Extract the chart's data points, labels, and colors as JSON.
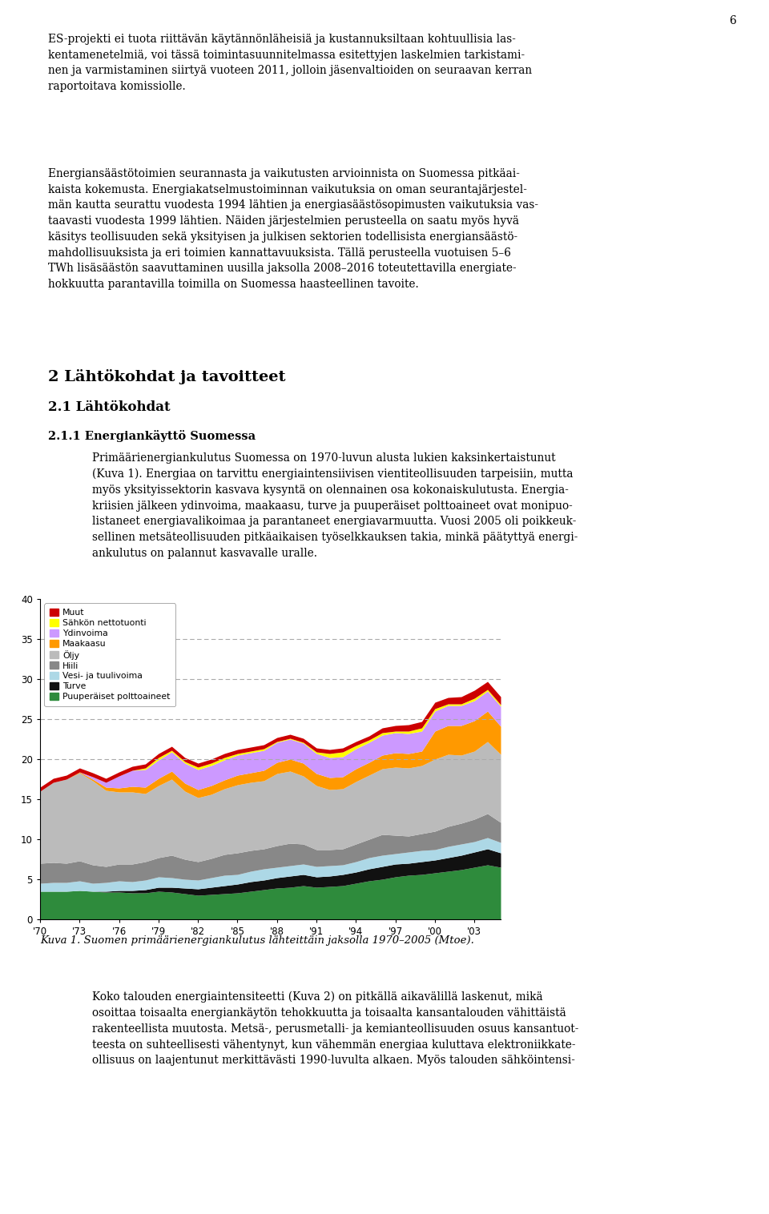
{
  "page_number": "6",
  "p1_lines": [
    "ES-projekti ei tuota riittävän käytännönläheisiä ja kustannuksiltaan kohtuullisia las-",
    "kentamenetelmiä, voi tässä toimintasuunnitelmassa esitettyjen laskelmien tarkistami-",
    "nen ja varmistaminen siirtyä vuoteen 2011, jolloin jäsenvaltioiden on seuraavan kerran",
    "raportoitava komissiolle."
  ],
  "p2_lines": [
    "Energiansäästötoimien seurannasta ja vaikutusten arvioinnista on Suomessa pitkäai-",
    "kaista kokemusta. Energiakatselmustoiminnan vaikutuksia on oman seurantajärjestel-",
    "män kautta seurattu vuodesta 1994 lähtien ja energiasäästösopimusten vaikutuksia vas-",
    "taavasti vuodesta 1999 lähtien. Näiden järjestelmien perusteella on saatu myös hyvä",
    "käsitys teollisuuden sekä yksityisen ja julkisen sektorien todellisista energiansäästö-",
    "mahdollisuuksista ja eri toimien kannattavuuksista. Tällä perusteella vuotuisen 5–6",
    "TWh lisäsäästön saavuttaminen uusilla jaksolla 2008–2016 toteutettavilla energiate-",
    "hokkuutta parantavilla toimilla on Suomessa haasteellinen tavoite."
  ],
  "heading1": "2 Lähtökohdat ja tavoitteet",
  "heading2": "2.1 Lähtökohdat",
  "heading3": "2.1.1 Energiankäyttö Suomessa",
  "p3_lines": [
    "Primäärienergiankulutus Suomessa on 1970-luvun alusta lukien kaksinkertaistunut",
    "(Kuva 1). Energiaa on tarvittu energiaintensiivisen vientiteollisuuden tarpeisiin, mutta",
    "myös yksityissektorin kasvava kysyntä on olennainen osa kokonaiskulutusta. Energia-",
    "kriisien jälkeen ydinvoima, maakaasu, turve ja puuperäiset polttoaineet ovat monipuo-",
    "listaneet energiavalikoimaa ja parantaneet energiavarmuutta. Vuosi 2005 oli poikkeuk-",
    "sellinen metsäteollisuuden pitkäaikaisen työselkkauksen takia, minkä päätyttyä energi-",
    "ankulutus on palannut kasvavalle uralle."
  ],
  "caption": "Kuva 1. Suomen primäärienergiankulutus lähteittäin jaksolla 1970–2005 (Mtoe).",
  "p4_lines": [
    "Koko talouden energiaintensiteetti (Kuva 2) on pitkällä aikavälillä laskenut, mikä",
    "osoittaa toisaalta energiankäytön tehokkuutta ja toisaalta kansantalouden vähittäistä",
    "rakenteellista muutosta. Metsä-, perusmetalli- ja kemianteollisuuden osuus kansantuot-",
    "teesta on suhteellisesti vähentynyt, kun vähemmän energiaa kuluttava elektroniikkate-",
    "ollisuus on laajentunut merkittävästi 1990-luvulta alkaen. Myös talouden sähköintensi-"
  ],
  "chart": {
    "years_numeric": [
      1970,
      1971,
      1972,
      1973,
      1974,
      1975,
      1976,
      1977,
      1978,
      1979,
      1980,
      1981,
      1982,
      1983,
      1984,
      1985,
      1986,
      1987,
      1988,
      1989,
      1990,
      1991,
      1992,
      1993,
      1994,
      1995,
      1996,
      1997,
      1998,
      1999,
      2000,
      2001,
      2002,
      2003,
      2004,
      2005
    ],
    "Puuperäiset polttoaineet": [
      3.5,
      3.5,
      3.5,
      3.6,
      3.5,
      3.4,
      3.4,
      3.3,
      3.3,
      3.5,
      3.4,
      3.2,
      3.0,
      3.1,
      3.2,
      3.3,
      3.5,
      3.7,
      3.9,
      4.0,
      4.2,
      4.0,
      4.1,
      4.2,
      4.5,
      4.8,
      5.0,
      5.3,
      5.5,
      5.6,
      5.8,
      6.0,
      6.2,
      6.5,
      6.8,
      6.5
    ],
    "Turve": [
      0.0,
      0.0,
      0.0,
      0.0,
      0.0,
      0.1,
      0.2,
      0.3,
      0.4,
      0.5,
      0.6,
      0.7,
      0.8,
      0.9,
      1.0,
      1.1,
      1.2,
      1.2,
      1.3,
      1.4,
      1.4,
      1.3,
      1.3,
      1.4,
      1.4,
      1.5,
      1.6,
      1.6,
      1.5,
      1.6,
      1.6,
      1.7,
      1.8,
      1.9,
      2.0,
      1.8
    ],
    "Vesi- ja tuulivoima": [
      1.0,
      1.1,
      1.1,
      1.2,
      1.0,
      1.1,
      1.2,
      1.1,
      1.2,
      1.3,
      1.2,
      1.1,
      1.1,
      1.2,
      1.3,
      1.2,
      1.3,
      1.4,
      1.3,
      1.3,
      1.3,
      1.3,
      1.3,
      1.2,
      1.3,
      1.4,
      1.4,
      1.3,
      1.4,
      1.4,
      1.3,
      1.4,
      1.4,
      1.3,
      1.4,
      1.3
    ],
    "Hiili": [
      2.5,
      2.5,
      2.4,
      2.5,
      2.3,
      2.0,
      2.1,
      2.2,
      2.3,
      2.4,
      2.8,
      2.5,
      2.3,
      2.4,
      2.6,
      2.7,
      2.6,
      2.5,
      2.7,
      2.8,
      2.5,
      2.1,
      2.0,
      2.0,
      2.2,
      2.3,
      2.6,
      2.3,
      2.0,
      2.1,
      2.3,
      2.5,
      2.6,
      2.8,
      3.0,
      2.5
    ],
    "Öljy": [
      9.0,
      10.0,
      10.5,
      11.0,
      10.5,
      9.5,
      9.0,
      9.0,
      8.5,
      9.0,
      9.5,
      8.5,
      8.0,
      8.0,
      8.2,
      8.5,
      8.5,
      8.5,
      9.0,
      9.0,
      8.5,
      8.0,
      7.5,
      7.5,
      7.8,
      8.0,
      8.2,
      8.5,
      8.5,
      8.5,
      9.0,
      9.0,
      8.5,
      8.5,
      9.0,
      8.5
    ],
    "Maakaasu": [
      0.0,
      0.0,
      0.0,
      0.1,
      0.2,
      0.4,
      0.5,
      0.7,
      0.8,
      0.9,
      1.0,
      1.0,
      1.0,
      1.1,
      1.1,
      1.2,
      1.2,
      1.3,
      1.4,
      1.5,
      1.6,
      1.5,
      1.5,
      1.5,
      1.6,
      1.6,
      1.7,
      1.8,
      1.8,
      1.8,
      3.5,
      3.6,
      3.7,
      3.8,
      3.8,
      3.5
    ],
    "Ydinvoima": [
      0.0,
      0.0,
      0.0,
      0.0,
      0.3,
      0.6,
      1.5,
      2.0,
      2.2,
      2.3,
      2.4,
      2.5,
      2.5,
      2.5,
      2.5,
      2.5,
      2.5,
      2.5,
      2.5,
      2.5,
      2.5,
      2.5,
      2.5,
      2.5,
      2.5,
      2.5,
      2.5,
      2.5,
      2.5,
      2.5,
      2.5,
      2.5,
      2.5,
      2.5,
      2.5,
      2.5
    ],
    "Sähkön nettotuonti": [
      0.0,
      0.0,
      0.0,
      0.0,
      0.0,
      0.0,
      0.0,
      0.0,
      0.2,
      0.3,
      0.2,
      0.2,
      0.3,
      0.3,
      0.3,
      0.2,
      0.2,
      0.2,
      0.1,
      0.1,
      0.1,
      0.2,
      0.5,
      0.6,
      0.4,
      0.3,
      0.3,
      0.2,
      0.3,
      0.4,
      0.3,
      0.2,
      0.2,
      0.3,
      0.2,
      0.2
    ],
    "Muut": [
      0.5,
      0.5,
      0.5,
      0.5,
      0.5,
      0.5,
      0.5,
      0.5,
      0.5,
      0.5,
      0.5,
      0.5,
      0.5,
      0.5,
      0.5,
      0.5,
      0.5,
      0.5,
      0.5,
      0.5,
      0.5,
      0.5,
      0.5,
      0.5,
      0.5,
      0.5,
      0.6,
      0.7,
      0.8,
      0.8,
      0.8,
      0.8,
      0.9,
      1.0,
      1.0,
      1.0
    ]
  },
  "bg_color": "#ffffff",
  "text_color": "#000000"
}
